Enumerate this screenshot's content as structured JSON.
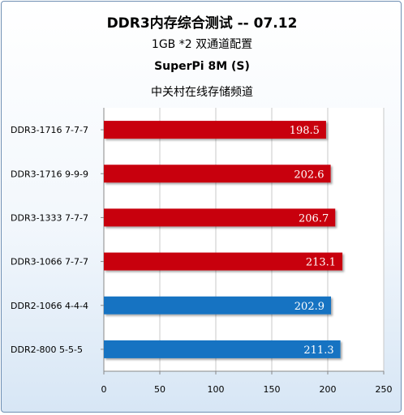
{
  "chart_data": {
    "type": "bar",
    "orientation": "horizontal",
    "title": "DDR3内存综合测试 -- 07.12",
    "subtitles": [
      "1GB *2 双通道配置",
      "SuperPi 8M (S)",
      "中关村在线存储频道"
    ],
    "categories": [
      "DDR3-1716 7-7-7",
      "DDR3-1716 9-9-9",
      "DDR3-1333 7-7-7",
      "DDR3-1066 7-7-7",
      "DDR2-1066 4-4-4",
      "DDR2-800 5-5-5"
    ],
    "values": [
      198.5,
      202.6,
      206.7,
      213.1,
      202.9,
      211.3
    ],
    "value_labels": [
      "198.5",
      "202.6",
      "206.7",
      "213.1",
      "202.9",
      "211.3"
    ],
    "bar_colors": [
      "#c8000f",
      "#c8000f",
      "#c8000f",
      "#c8000f",
      "#1473c2",
      "#1473c2"
    ],
    "xlim": [
      0,
      250
    ],
    "xticks": [
      0,
      50,
      100,
      150,
      200,
      250
    ],
    "xtick_labels": [
      "0",
      "50",
      "100",
      "150",
      "200",
      "250"
    ],
    "grid": true,
    "legend": "none"
  }
}
